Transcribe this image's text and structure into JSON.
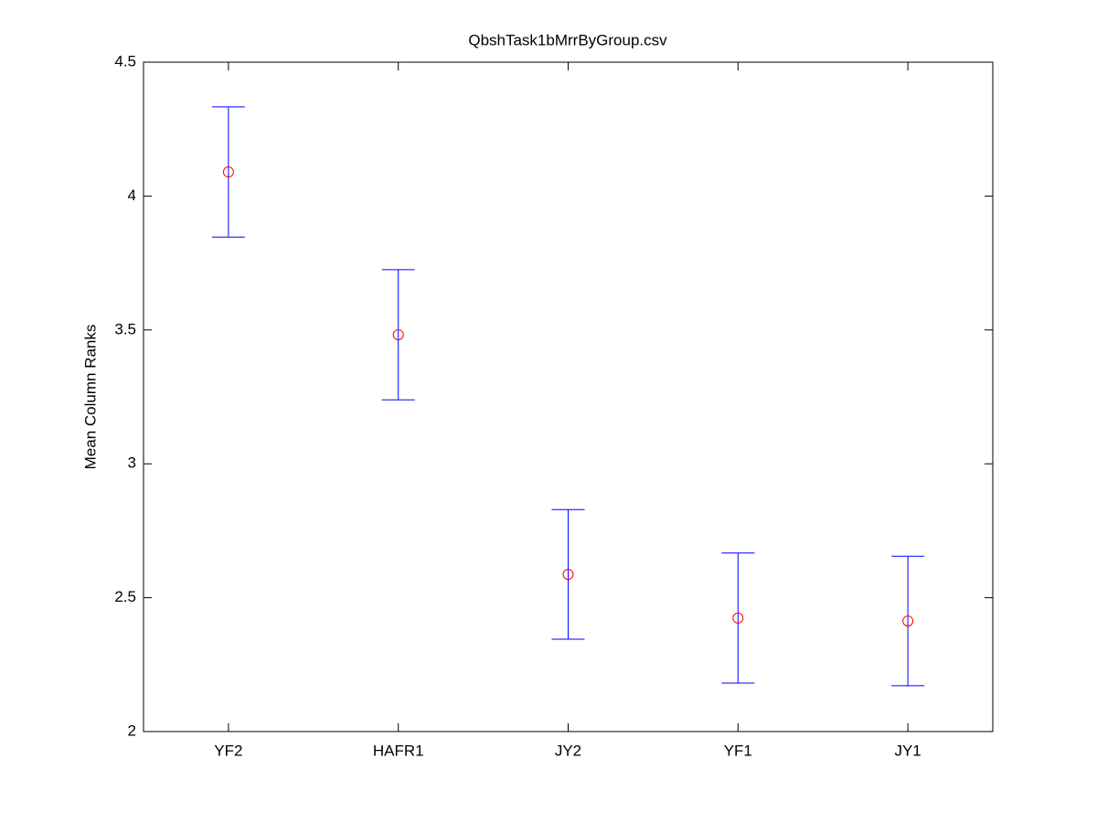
{
  "chart_data": {
    "type": "errorbar",
    "title": "QbshTask1bMrrByGroup.csv",
    "y_label": "Mean Column Ranks",
    "categories": [
      "YF2",
      "HAFR1",
      "JY2",
      "YF1",
      "JY1"
    ],
    "values": [
      4.09,
      3.482,
      2.587,
      2.424,
      2.413
    ],
    "errors": [
      0.243,
      0.243,
      0.242,
      0.243,
      0.242
    ],
    "color": "#0000ff",
    "marker_color": "#ff0000",
    "ylim": [
      2,
      4.5
    ],
    "yticks": [
      2,
      2.5,
      3,
      3.5,
      4,
      4.5
    ],
    "grid": false
  }
}
